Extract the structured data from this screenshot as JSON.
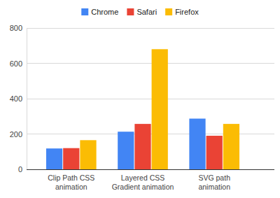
{
  "chart_data": {
    "type": "bar",
    "categories": [
      "Clip Path CSS animation",
      "Layered CSS Gradient animation",
      "SVG path animation"
    ],
    "series": [
      {
        "name": "Chrome",
        "color": "#4285f4",
        "values": [
          118,
          213,
          287
        ]
      },
      {
        "name": "Safari",
        "color": "#ea4335",
        "values": [
          120,
          257,
          190
        ]
      },
      {
        "name": "Firefox",
        "color": "#fbbc04",
        "values": [
          165,
          680,
          257
        ]
      }
    ],
    "ylim": [
      0,
      800
    ],
    "yticks": [
      0,
      200,
      400,
      600,
      800
    ],
    "grid": true,
    "legend": "top"
  }
}
